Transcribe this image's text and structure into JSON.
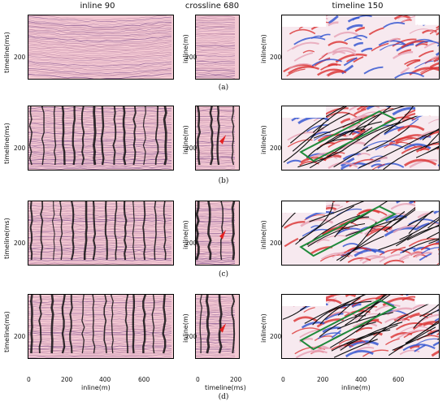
{
  "columns": {
    "inline": "inline 90",
    "crossline": "crossline 680",
    "timeline": "timeline 150"
  },
  "axis_labels": {
    "timeline_ms": "timeline(ms)",
    "inline_m": "inline(m)",
    "inline_m_x": "inline(m)",
    "timeline_ms_x": "timeline(ms)"
  },
  "row_labels": [
    "(a)",
    "(b)",
    "(c)",
    "(d)"
  ],
  "y_ticks": [
    "200"
  ],
  "x_ticks_inline": [
    "0",
    "200",
    "400",
    "600"
  ],
  "x_ticks_crossline": [
    "0",
    "200"
  ],
  "x_ticks_timeline": [
    "0",
    "200",
    "400",
    "600"
  ],
  "colors": {
    "seismic_bg": "#f4c9d3",
    "seismic_line": "#7b4a8a",
    "fault": "#111111",
    "green_box": "#1f8a3a",
    "red_marker": "#e32222",
    "blue": "#2b4fd0",
    "red": "#d93030"
  }
}
